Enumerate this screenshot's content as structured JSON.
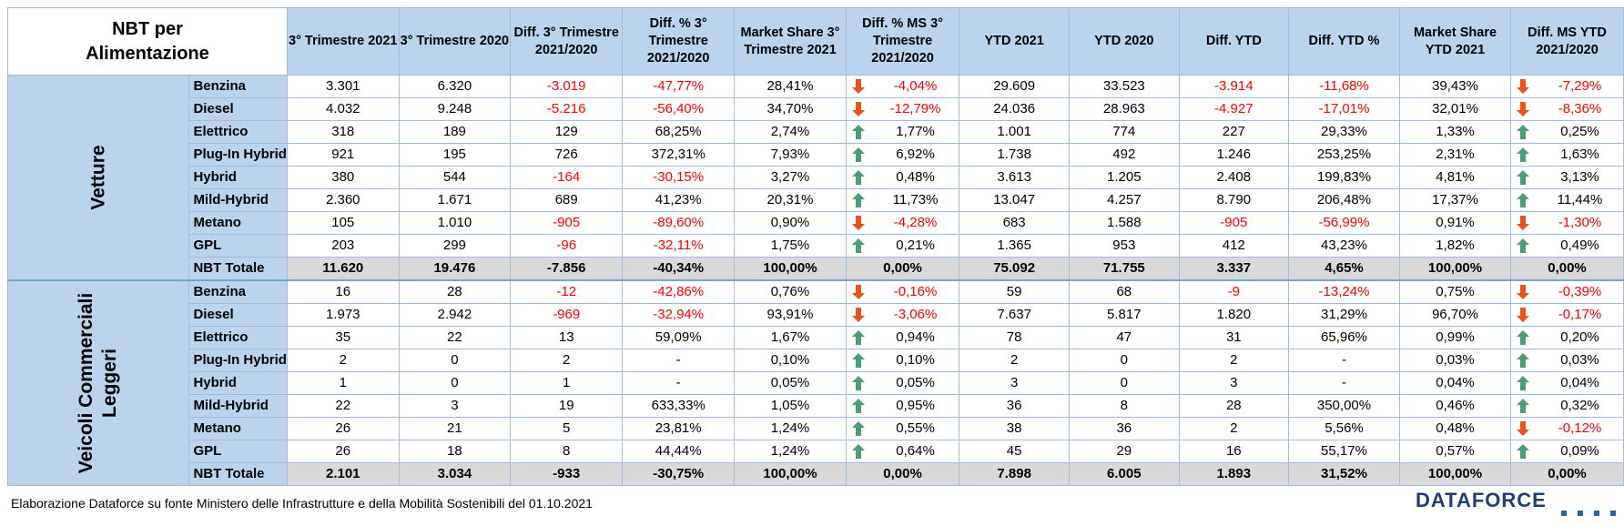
{
  "header": {
    "corner": "NBT per Alimentazione",
    "columns": [
      "3° Trimestre 2021",
      "3° Trimestre 2020",
      "Diff. 3° Trimestre 2021/2020",
      "Diff. % 3° Trimestre 2021/2020",
      "Market Share 3° Trimestre 2021",
      "Diff. % MS 3° Trimestre 2021/2020",
      "YTD 2021",
      "YTD 2020",
      "Diff. YTD",
      "Diff. YTD %",
      "Market Share YTD 2021",
      "Diff. MS YTD 2021/2020"
    ]
  },
  "colors": {
    "header_bg": "#bcd3ec",
    "total_bg": "#d9d9d9",
    "negative": "#ff0000",
    "arrow_up": "#4e9b78",
    "arrow_down": "#e5531f"
  },
  "groups": [
    {
      "name": "Vetture",
      "rows": [
        {
          "cat": "Benzina",
          "v": [
            "3.301",
            "6.320",
            "-3.019",
            "-47,77%",
            "28,41%",
            "-4,04%",
            "29.609",
            "33.523",
            "-3.914",
            "-11,68%",
            "39,43%",
            "-7,29%"
          ]
        },
        {
          "cat": "Diesel",
          "v": [
            "4.032",
            "9.248",
            "-5.216",
            "-56,40%",
            "34,70%",
            "-12,79%",
            "24.036",
            "28.963",
            "-4.927",
            "-17,01%",
            "32,01%",
            "-8,36%"
          ]
        },
        {
          "cat": "Elettrico",
          "v": [
            "318",
            "189",
            "129",
            "68,25%",
            "2,74%",
            "1,77%",
            "1.001",
            "774",
            "227",
            "29,33%",
            "1,33%",
            "0,25%"
          ]
        },
        {
          "cat": "Plug-In Hybrid",
          "v": [
            "921",
            "195",
            "726",
            "372,31%",
            "7,93%",
            "6,92%",
            "1.738",
            "492",
            "1.246",
            "253,25%",
            "2,31%",
            "1,63%"
          ]
        },
        {
          "cat": "Hybrid",
          "v": [
            "380",
            "544",
            "-164",
            "-30,15%",
            "3,27%",
            "0,48%",
            "3.613",
            "1.205",
            "2.408",
            "199,83%",
            "4,81%",
            "3,13%"
          ]
        },
        {
          "cat": "Mild-Hybrid",
          "v": [
            "2.360",
            "1.671",
            "689",
            "41,23%",
            "20,31%",
            "11,73%",
            "13.047",
            "4.257",
            "8.790",
            "206,48%",
            "17,37%",
            "11,44%"
          ]
        },
        {
          "cat": "Metano",
          "v": [
            "105",
            "1.010",
            "-905",
            "-89,60%",
            "0,90%",
            "-4,28%",
            "683",
            "1.588",
            "-905",
            "-56,99%",
            "0,91%",
            "-1,30%"
          ]
        },
        {
          "cat": "GPL",
          "v": [
            "203",
            "299",
            "-96",
            "-32,11%",
            "1,75%",
            "0,21%",
            "1.365",
            "953",
            "412",
            "43,23%",
            "1,82%",
            "0,49%"
          ]
        },
        {
          "cat": "NBT Totale",
          "total": true,
          "v": [
            "11.620",
            "19.476",
            "-7.856",
            "-40,34%",
            "100,00%",
            "0,00%",
            "75.092",
            "71.755",
            "3.337",
            "4,65%",
            "100,00%",
            "0,00%"
          ]
        }
      ]
    },
    {
      "name": "Veicoli Commerciali Leggeri",
      "name_lines": [
        "Veicoli Commerciali",
        "Leggeri"
      ],
      "rows": [
        {
          "cat": "Benzina",
          "v": [
            "16",
            "28",
            "-12",
            "-42,86%",
            "0,76%",
            "-0,16%",
            "59",
            "68",
            "-9",
            "-13,24%",
            "0,75%",
            "-0,39%"
          ]
        },
        {
          "cat": "Diesel",
          "v": [
            "1.973",
            "2.942",
            "-969",
            "-32,94%",
            "93,91%",
            "-3,06%",
            "7.637",
            "5.817",
            "1.820",
            "31,29%",
            "96,70%",
            "-0,17%"
          ]
        },
        {
          "cat": "Elettrico",
          "v": [
            "35",
            "22",
            "13",
            "59,09%",
            "1,67%",
            "0,94%",
            "78",
            "47",
            "31",
            "65,96%",
            "0,99%",
            "0,20%"
          ]
        },
        {
          "cat": "Plug-In Hybrid",
          "v": [
            "2",
            "0",
            "2",
            "-",
            "0,10%",
            "0,10%",
            "2",
            "0",
            "2",
            "-",
            "0,03%",
            "0,03%"
          ]
        },
        {
          "cat": "Hybrid",
          "v": [
            "1",
            "0",
            "1",
            "-",
            "0,05%",
            "0,05%",
            "3",
            "0",
            "3",
            "-",
            "0,04%",
            "0,04%"
          ]
        },
        {
          "cat": "Mild-Hybrid",
          "v": [
            "22",
            "3",
            "19",
            "633,33%",
            "1,05%",
            "0,95%",
            "36",
            "8",
            "28",
            "350,00%",
            "0,46%",
            "0,32%"
          ]
        },
        {
          "cat": "Metano",
          "v": [
            "26",
            "21",
            "5",
            "23,81%",
            "1,24%",
            "0,55%",
            "38",
            "36",
            "2",
            "5,56%",
            "0,48%",
            "-0,12%"
          ]
        },
        {
          "cat": "GPL",
          "v": [
            "26",
            "18",
            "8",
            "44,44%",
            "1,24%",
            "0,64%",
            "45",
            "29",
            "16",
            "55,17%",
            "0,57%",
            "0,09%"
          ]
        },
        {
          "cat": "NBT Totale",
          "total": true,
          "v": [
            "2.101",
            "3.034",
            "-933",
            "-30,75%",
            "100,00%",
            "0,00%",
            "7.898",
            "6.005",
            "1.893",
            "31,52%",
            "100,00%",
            "0,00%"
          ]
        }
      ]
    }
  ],
  "footer": {
    "note": "Elaborazione Dataforce su fonte Ministero delle Infrastrutture e della Mobilità Sostenibili del 01.10.2021",
    "logo": "DATAFORCE"
  }
}
